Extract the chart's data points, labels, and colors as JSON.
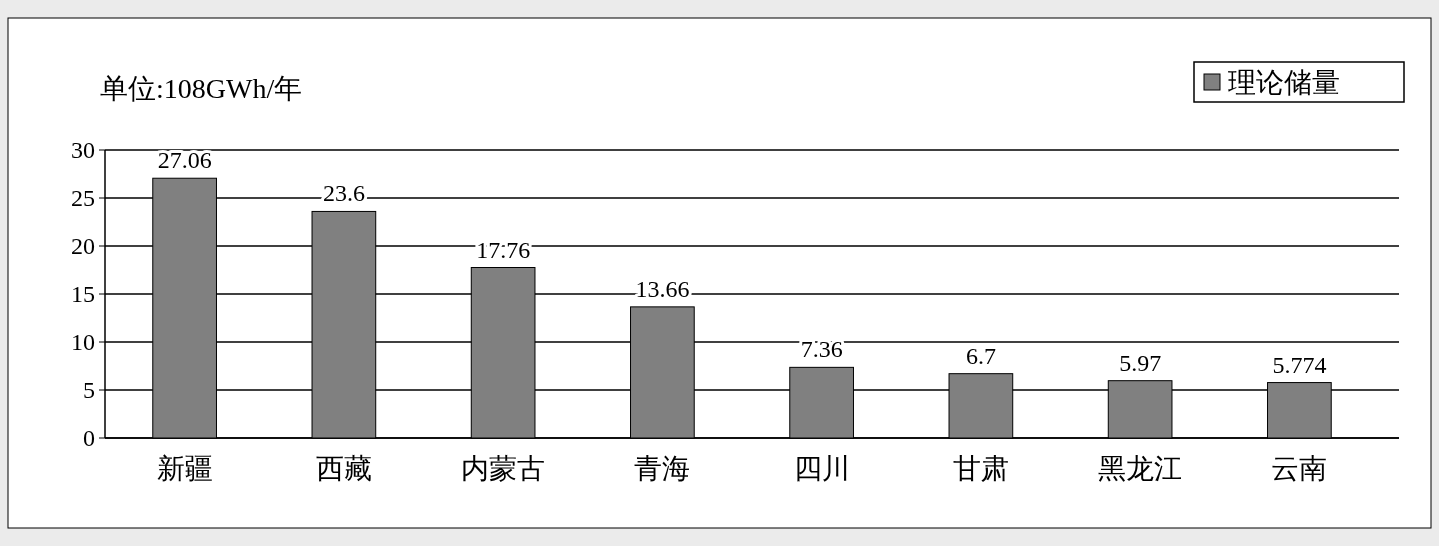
{
  "chart_data": {
    "type": "bar",
    "ylabel": "单位:108GWh/年",
    "categories": [
      "新疆",
      "西藏",
      "内蒙古",
      "青海",
      "四川",
      "甘肃",
      "黑龙江",
      "云南"
    ],
    "series": [
      {
        "name": "理论储量",
        "color": "#808080",
        "values": [
          27.06,
          23.6,
          17.76,
          13.66,
          7.36,
          6.7,
          5.97,
          5.774
        ]
      }
    ],
    "ylim": [
      0,
      30
    ],
    "yticks": [
      0,
      5,
      10,
      15,
      20,
      25,
      30
    ],
    "grid": "y",
    "legend": "top right",
    "data_labels": true
  }
}
